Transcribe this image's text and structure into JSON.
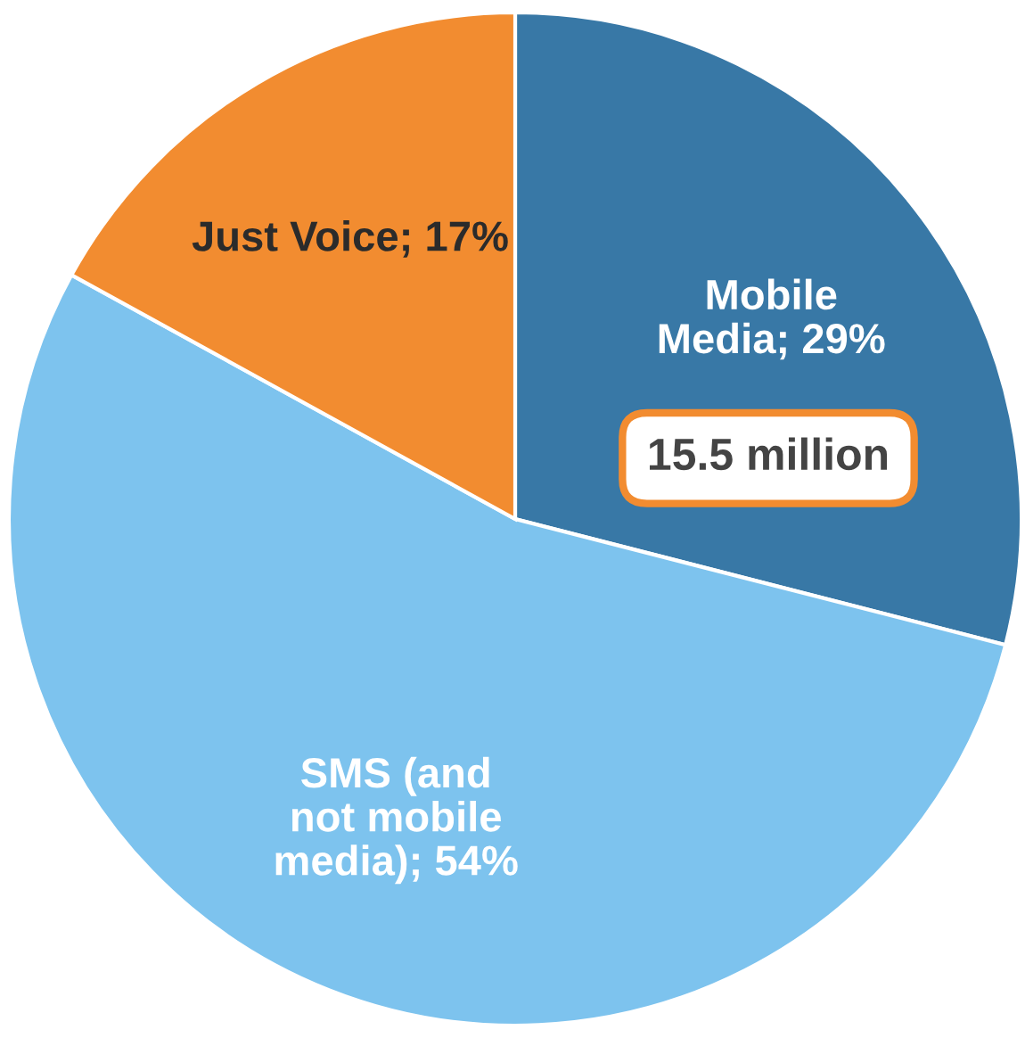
{
  "chart_data": {
    "type": "pie",
    "categories": [
      "Mobile Media",
      "SMS (and not mobile media)",
      "Just Voice"
    ],
    "value_labels": [
      "29%",
      "54%",
      "17%"
    ],
    "values": [
      29,
      54,
      17
    ],
    "colors": [
      "#3878a6",
      "#7dc3ee",
      "#f28c30"
    ],
    "annotations": [
      "15.5 million"
    ]
  }
}
